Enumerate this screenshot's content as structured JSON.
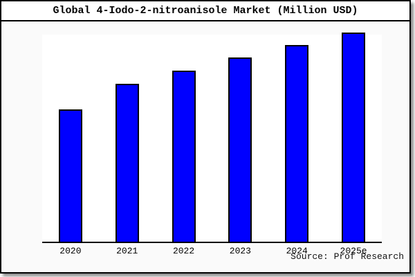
{
  "window": {
    "title": "Global 4-Iodo-2-nitroanisole Market (Million USD)"
  },
  "chart_data": {
    "type": "bar",
    "title": "Global 4-Iodo-2-nitroanisole Market (Million USD)",
    "unit": "Million USD",
    "categories": [
      "2020",
      "2021",
      "2022",
      "2023",
      "2024",
      "2025e"
    ],
    "values": [
      63,
      75.3,
      81.8,
      88,
      94,
      100
    ],
    "value_note": "No y-axis ticks or value labels are shown in the chart; values are estimated from relative bar heights normalized to 2025e = 100",
    "xlabel": "",
    "ylabel": "",
    "ylim": [
      0,
      100
    ],
    "grid": false,
    "legend": "none",
    "bar_color": "#0000ff",
    "bar_outline_color": "#000000"
  },
  "source": {
    "label": "Source: Prof Research"
  },
  "colors": {
    "card_background": "#fafafa",
    "plot_background": "#ffffff",
    "title_background": "#ffffff",
    "border": "#000000",
    "bar_fill": "#0000ff",
    "text": "#000000",
    "shadow": "rgba(0,0,0,0.45)"
  }
}
